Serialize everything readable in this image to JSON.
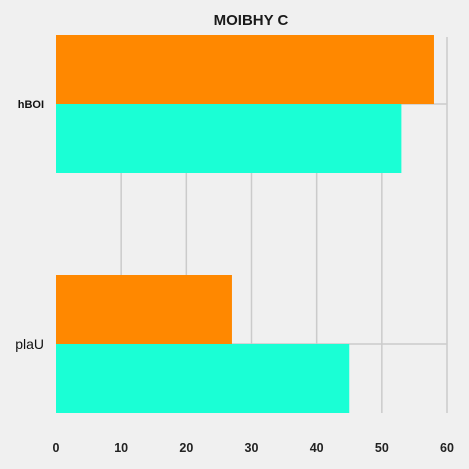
{
  "chart_data": {
    "type": "bar",
    "orientation": "horizontal",
    "title": "MOIBHY C",
    "categories": [
      "hBOI",
      "plaU"
    ],
    "category_label_bold": [
      true,
      false
    ],
    "series": [
      {
        "values": [
          58,
          27
        ],
        "color": "#ff8800"
      },
      {
        "values": [
          53,
          45
        ],
        "color": "#1affd5"
      }
    ],
    "xlim": [
      0,
      60
    ],
    "xticks": [
      "0",
      "10",
      "20",
      "30",
      "40",
      "50",
      "60"
    ],
    "xlabel": "",
    "ylabel": "",
    "grid": true,
    "legend": "none"
  }
}
